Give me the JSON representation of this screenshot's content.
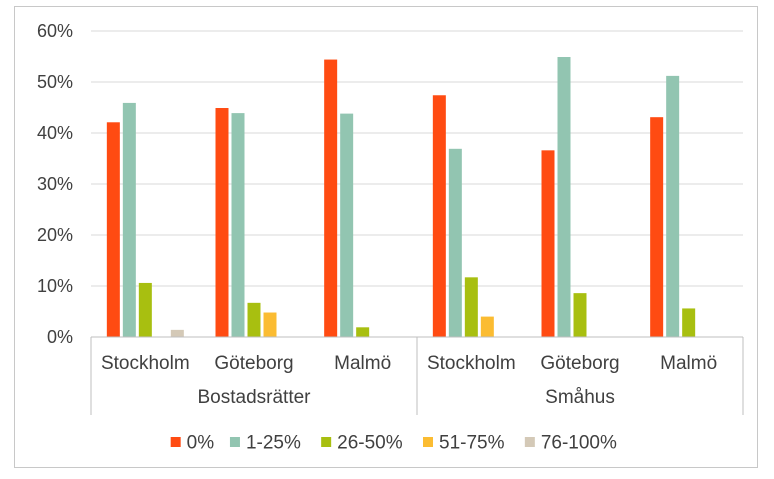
{
  "chart_data": {
    "type": "bar",
    "title": "",
    "xlabel": "",
    "ylabel": "",
    "ylim": [
      0,
      60
    ],
    "yticks": [
      "0%",
      "10%",
      "20%",
      "30%",
      "40%",
      "50%",
      "60%"
    ],
    "grid": true,
    "legend_position": "bottom",
    "groups": [
      {
        "label": "Bostadsrätter",
        "categories": [
          "Stockholm",
          "Göteborg",
          "Malmö"
        ]
      },
      {
        "label": "Småhus",
        "categories": [
          "Stockholm",
          "Göteborg",
          "Malmö"
        ]
      }
    ],
    "categories": [
      "Stockholm",
      "Göteborg",
      "Malmö",
      "Stockholm",
      "Göteborg",
      "Malmö"
    ],
    "series": [
      {
        "name": "0%",
        "color": "#ff4b12",
        "values": [
          42.1,
          44.9,
          54.4,
          47.4,
          36.6,
          43.1
        ]
      },
      {
        "name": "1-25%",
        "color": "#92c5b1",
        "values": [
          45.9,
          43.9,
          43.8,
          36.9,
          54.9,
          51.2
        ]
      },
      {
        "name": "26-50%",
        "color": "#a8bf10",
        "values": [
          10.6,
          6.7,
          1.9,
          11.7,
          8.6,
          5.6
        ]
      },
      {
        "name": "51-75%",
        "color": "#fbbc32",
        "values": [
          0.0,
          4.8,
          0.0,
          4.0,
          0.0,
          0.0
        ]
      },
      {
        "name": "76-100%",
        "color": "#d4c9b7",
        "values": [
          1.4,
          0.0,
          0.0,
          0.0,
          0.0,
          0.0
        ]
      }
    ]
  }
}
